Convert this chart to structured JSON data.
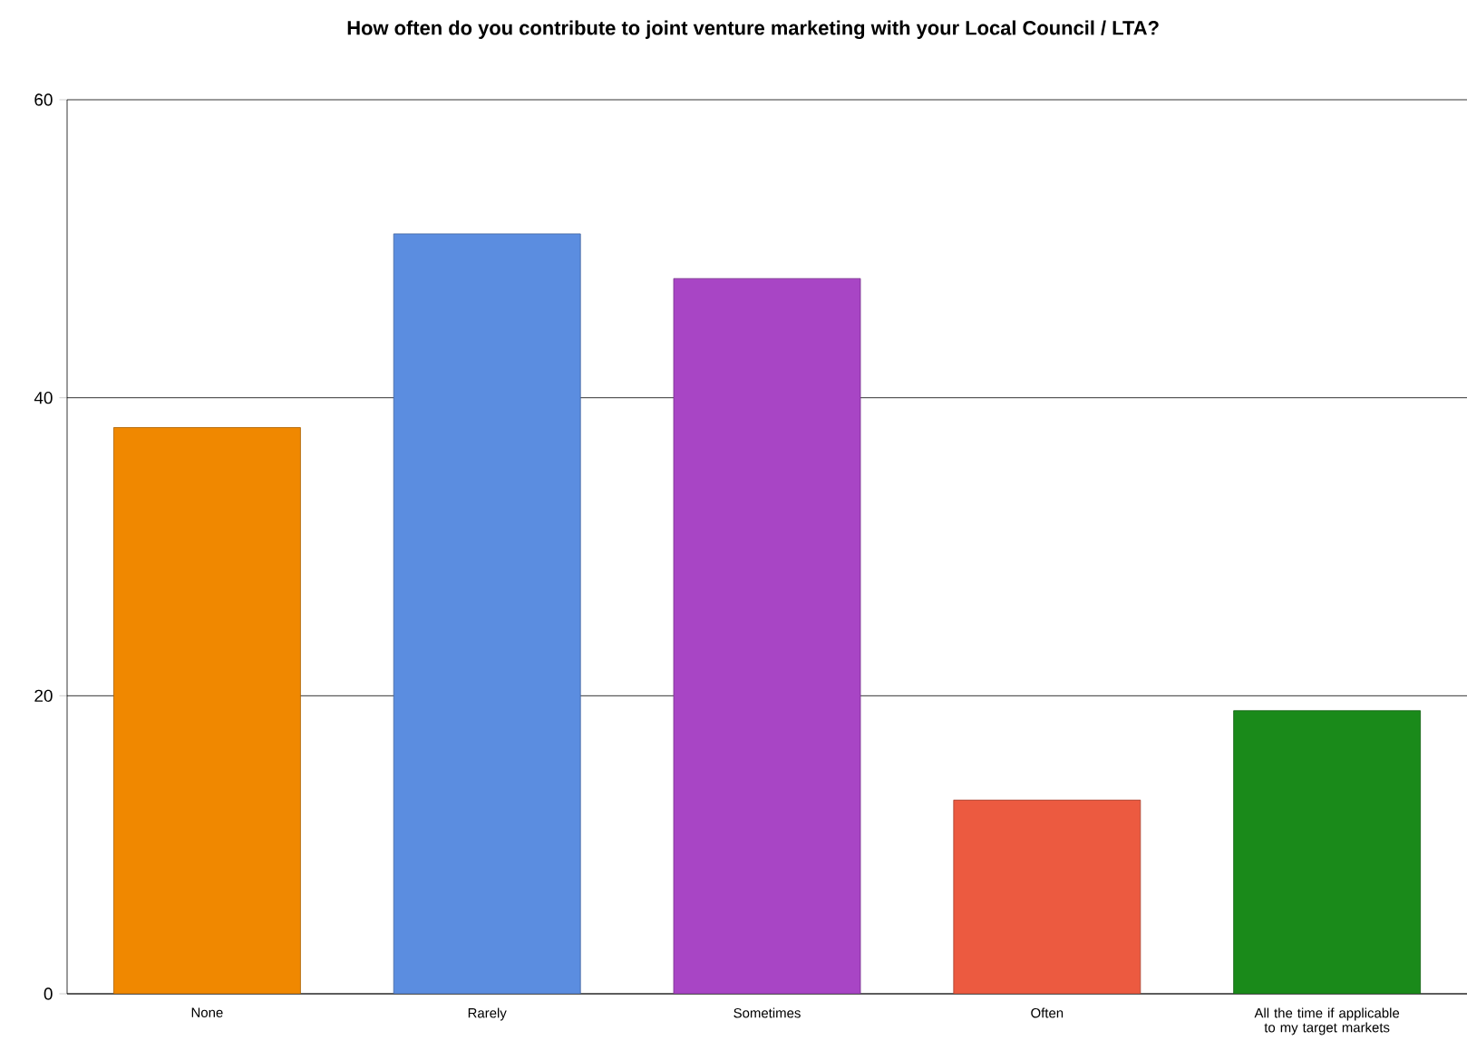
{
  "chart_data": {
    "type": "bar",
    "title": "How often do you contribute to joint venture marketing with your Local Council / LTA?",
    "categories": [
      "None",
      "Rarely",
      "Sometimes",
      "Often",
      "All the time if applicable to my target markets"
    ],
    "values": [
      38,
      51,
      48,
      13,
      19
    ],
    "colors": [
      "#f08800",
      "#5b8de0",
      "#a845c5",
      "#ec5a40",
      "#1a8a1a"
    ],
    "ylim": [
      0,
      60
    ],
    "yticks": [
      0,
      20,
      40,
      60
    ],
    "grid": "y"
  }
}
